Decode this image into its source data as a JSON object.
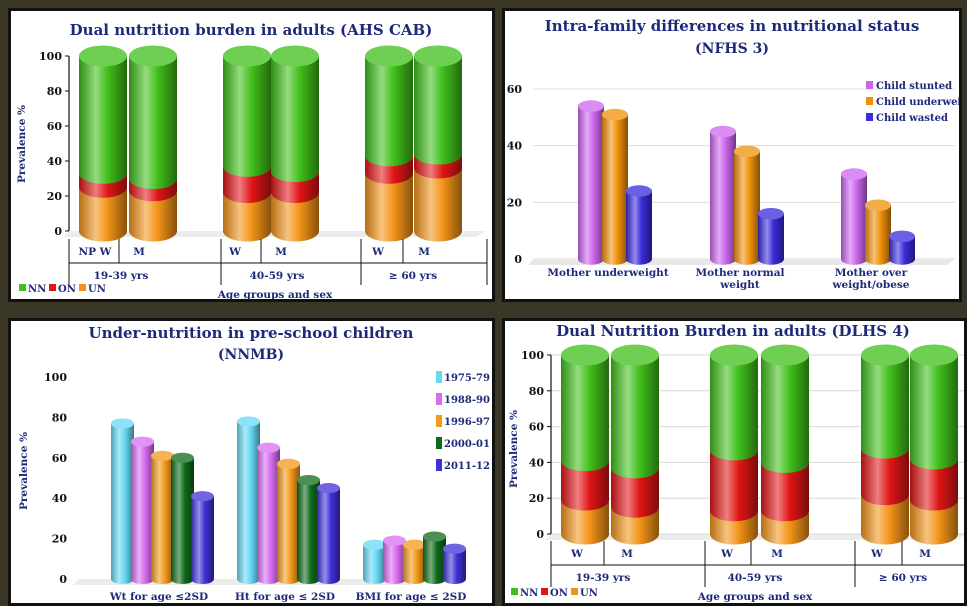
{
  "colors": {
    "NN": "#3fbf1a",
    "ON": "#e01515",
    "UN": "#f29318",
    "Child stunted": "#cc66ee",
    "Child underweight": "#f0900a",
    "Child wasted": "#3a2bdc",
    "1975-79": "#66d8f4",
    "1988-90": "#d86cf0",
    "1996-97": "#f29a1a",
    "2000-01": "#0f6a1a",
    "2011-12": "#4030d8"
  },
  "chart_data": [
    {
      "type": "bar",
      "stacked": true,
      "title": "Dual nutrition burden in adults (AHS CAB)",
      "xlabel": "Age groups and sex",
      "ylabel": "Prevalence %",
      "ylim": [
        0,
        100
      ],
      "yticks": [
        "0",
        "20",
        "40",
        "60",
        "80",
        "100"
      ],
      "categories": [
        "NP W",
        "M",
        "W",
        "M",
        "W",
        "M"
      ],
      "groups": [
        "19-39 yrs",
        "40-59 yrs",
        "≥ 60 yrs"
      ],
      "series": [
        {
          "name": "UN",
          "values": [
            25,
            23,
            22,
            22,
            33,
            36
          ]
        },
        {
          "name": "ON",
          "values": [
            8,
            7,
            15,
            12,
            10,
            8
          ]
        },
        {
          "name": "NN",
          "values": [
            67,
            70,
            63,
            66,
            57,
            56
          ]
        }
      ],
      "legend": [
        "NN",
        "ON",
        "UN"
      ],
      "legend_position": "bottom-left"
    },
    {
      "type": "bar",
      "title": "Intra-family differences in nutritional status",
      "subtitle": "(NFHS 3)",
      "ylim": [
        0,
        60
      ],
      "yticks": [
        "0",
        "20",
        "40",
        "60"
      ],
      "categories": [
        "Mother underweight",
        "Mother normal weight",
        "Mother over weight/obese"
      ],
      "category_lines": [
        [
          "Mother underweight"
        ],
        [
          "Mother normal",
          "weight"
        ],
        [
          "Mother over",
          "weight/obese"
        ]
      ],
      "series": [
        {
          "name": "Child stunted",
          "values": [
            54,
            45,
            30
          ]
        },
        {
          "name": "Child underweight",
          "values": [
            51,
            38,
            19
          ]
        },
        {
          "name": "Child wasted",
          "values": [
            24,
            16,
            8
          ]
        }
      ],
      "legend_labels": [
        "Child stunted",
        "Child underweigh",
        "Child wasted"
      ],
      "legend_position": "top-right"
    },
    {
      "type": "bar",
      "title": "Under-nutrition  in pre-school children",
      "subtitle": "(NNMB)",
      "ylabel": "Prevalence %",
      "ylim": [
        0,
        100
      ],
      "yticks": [
        "0",
        "20",
        "40",
        "60",
        "80",
        "100"
      ],
      "categories": [
        "Wt for age ≤2SD",
        "Ht for age ≤ 2SD",
        "BMI for age ≤ 2SD"
      ],
      "series": [
        {
          "name": "1975-79",
          "values": [
            77,
            78,
            17
          ]
        },
        {
          "name": "1988-90",
          "values": [
            68,
            65,
            19
          ]
        },
        {
          "name": "1996-97",
          "values": [
            61,
            57,
            17
          ]
        },
        {
          "name": "2000-01",
          "values": [
            60,
            49,
            21
          ]
        },
        {
          "name": "2011-12",
          "values": [
            41,
            45,
            15
          ]
        }
      ],
      "legend_position": "right"
    },
    {
      "type": "bar",
      "stacked": true,
      "title": "Dual Nutrition Burden in adults (DLHS 4)",
      "xlabel": "Age groups and sex",
      "ylabel": "Prevalence %",
      "ylim": [
        0,
        100
      ],
      "yticks": [
        "0",
        "20",
        "40",
        "60",
        "80",
        "100"
      ],
      "categories": [
        "W",
        "M",
        "W",
        "M",
        "W",
        "M"
      ],
      "groups": [
        "19-39 yrs",
        "40-59 yrs",
        "≥ 60 yrs"
      ],
      "series": [
        {
          "name": "UN",
          "values": [
            19,
            15,
            13,
            13,
            22,
            19
          ]
        },
        {
          "name": "ON",
          "values": [
            22,
            22,
            34,
            27,
            26,
            23
          ]
        },
        {
          "name": "NN",
          "values": [
            59,
            63,
            53,
            60,
            52,
            58
          ]
        }
      ],
      "legend": [
        "NN",
        "ON",
        "UN"
      ],
      "legend_position": "bottom-left"
    }
  ]
}
